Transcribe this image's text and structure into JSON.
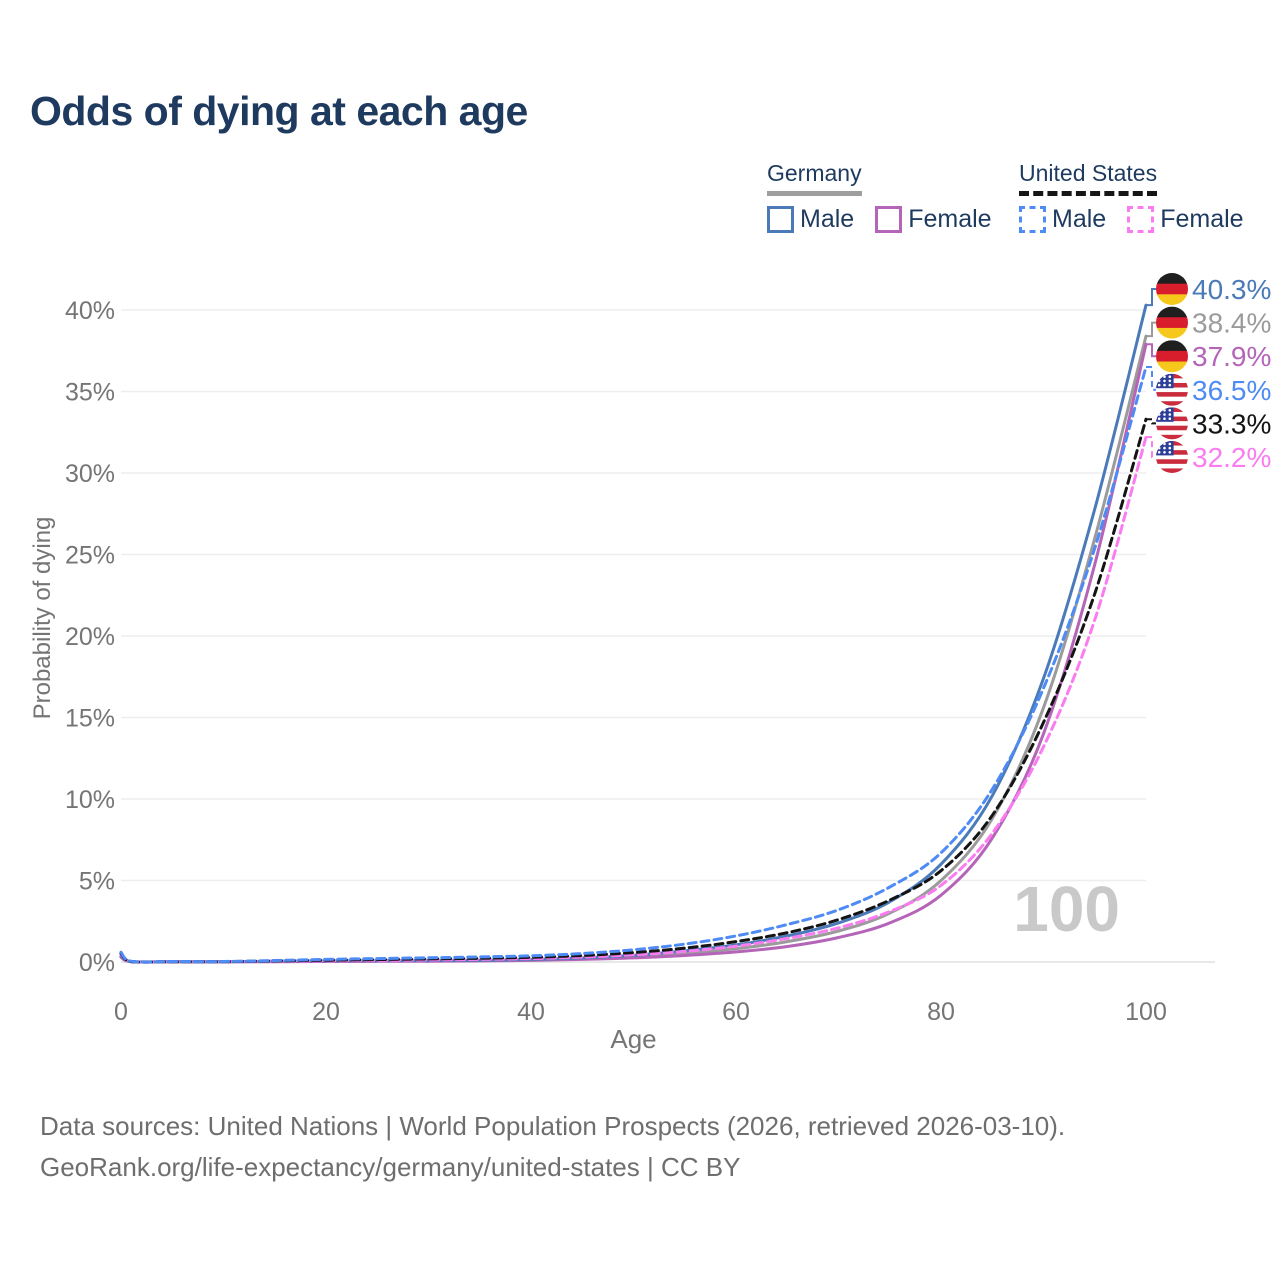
{
  "title": "Odds of dying at each age",
  "legend": {
    "groups": [
      {
        "id": "germany",
        "label": "Germany",
        "line_style": "solid",
        "underline_color": "#9e9e9e",
        "items": [
          {
            "label": "Male",
            "color": "#4a7ab7"
          },
          {
            "label": "Female",
            "color": "#b465b8"
          }
        ]
      },
      {
        "id": "united-states",
        "label": "United States",
        "line_style": "dashed",
        "underline_color": "#161616",
        "items": [
          {
            "label": "Male",
            "color": "#4e8bf5"
          },
          {
            "label": "Female",
            "color": "#fb7cf0"
          }
        ]
      }
    ]
  },
  "chart_data": {
    "type": "line",
    "title": "Odds of dying at each age",
    "xlabel": "Age",
    "ylabel": "Probability of dying",
    "xlim": [
      0,
      100
    ],
    "ylim": [
      0,
      42
    ],
    "grid": "horizontal",
    "legend_position": "top-right",
    "watermark": "100",
    "x_ticks": [
      0,
      20,
      40,
      60,
      80,
      100
    ],
    "y_ticks": [
      0,
      5,
      10,
      15,
      20,
      25,
      30,
      35,
      40
    ],
    "y_tick_labels": [
      "0%",
      "5%",
      "10%",
      "15%",
      "20%",
      "25%",
      "30%",
      "35%",
      "40%"
    ],
    "x": [
      0,
      1,
      5,
      10,
      15,
      20,
      25,
      30,
      35,
      40,
      45,
      50,
      55,
      60,
      65,
      70,
      75,
      80,
      85,
      90,
      95,
      100
    ],
    "series": [
      {
        "name": "Germany Male",
        "country": "Germany",
        "sex": "Male",
        "flag": "de",
        "style": "solid",
        "color": "#4a7ab7",
        "end_label": "40.3%",
        "values": [
          0.35,
          0.03,
          0.02,
          0.02,
          0.04,
          0.07,
          0.08,
          0.09,
          0.11,
          0.16,
          0.25,
          0.42,
          0.68,
          1.05,
          1.6,
          2.4,
          3.7,
          6.0,
          10.2,
          17.4,
          27.8,
          40.3
        ]
      },
      {
        "name": "Germany Both sexes",
        "country": "Germany",
        "sex": "Both",
        "flag": "de",
        "style": "solid",
        "color": "#9b9b9b",
        "end_label": "38.4%",
        "values": [
          0.32,
          0.02,
          0.01,
          0.01,
          0.03,
          0.05,
          0.06,
          0.07,
          0.09,
          0.13,
          0.2,
          0.33,
          0.53,
          0.82,
          1.25,
          1.9,
          3.0,
          5.0,
          8.8,
          15.6,
          26.0,
          38.4
        ]
      },
      {
        "name": "Germany Female",
        "country": "Germany",
        "sex": "Female",
        "flag": "de",
        "style": "solid",
        "color": "#b465b8",
        "end_label": "37.9%",
        "values": [
          0.29,
          0.02,
          0.01,
          0.01,
          0.02,
          0.03,
          0.04,
          0.05,
          0.07,
          0.1,
          0.16,
          0.25,
          0.4,
          0.62,
          0.95,
          1.5,
          2.4,
          4.1,
          7.6,
          14.0,
          24.4,
          37.9
        ]
      },
      {
        "name": "United States Male",
        "country": "United States",
        "sex": "Male",
        "flag": "us",
        "style": "dashed",
        "color": "#4e8bf5",
        "end_label": "36.5%",
        "values": [
          0.6,
          0.04,
          0.03,
          0.03,
          0.09,
          0.16,
          0.21,
          0.26,
          0.31,
          0.38,
          0.52,
          0.75,
          1.1,
          1.6,
          2.3,
          3.2,
          4.6,
          6.7,
          10.6,
          16.8,
          25.4,
          36.5
        ]
      },
      {
        "name": "United States Both sexes",
        "country": "United States",
        "sex": "Both",
        "flag": "us",
        "style": "dashed",
        "color": "#141414",
        "end_label": "33.3%",
        "values": [
          0.52,
          0.03,
          0.02,
          0.02,
          0.07,
          0.11,
          0.15,
          0.19,
          0.23,
          0.29,
          0.4,
          0.58,
          0.85,
          1.25,
          1.8,
          2.6,
          3.8,
          5.6,
          9.0,
          14.7,
          22.6,
          33.3
        ]
      },
      {
        "name": "United States Female",
        "country": "United States",
        "sex": "Female",
        "flag": "us",
        "style": "dashed",
        "color": "#fb7cf0",
        "end_label": "32.2%",
        "values": [
          0.44,
          0.03,
          0.02,
          0.02,
          0.05,
          0.07,
          0.09,
          0.12,
          0.16,
          0.21,
          0.3,
          0.44,
          0.65,
          0.97,
          1.45,
          2.1,
          3.1,
          4.7,
          7.9,
          13.2,
          21.0,
          32.2
        ]
      }
    ]
  },
  "footer": {
    "line1": "Data sources: United Nations | World Population Prospects (2026, retrieved 2026-03-10).",
    "line2": "GeoRank.org/life-expectancy/germany/united-states | CC BY"
  }
}
